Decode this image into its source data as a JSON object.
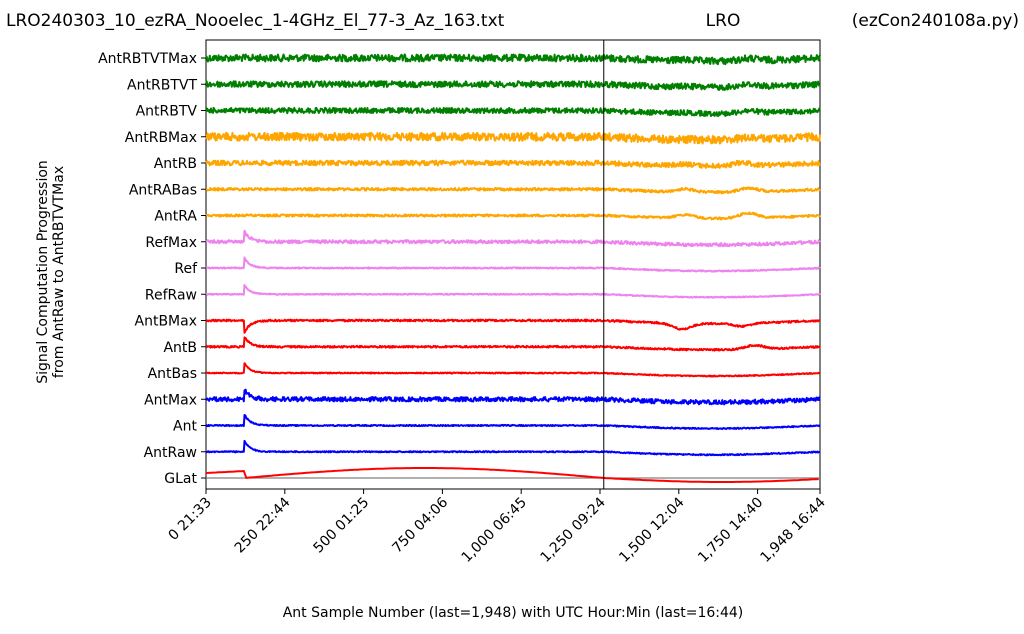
{
  "chart_data": {
    "type": "line",
    "title_left": "LRO240303_10_ezRA_Nooelec_1-4GHz_El_77-3_Az_163.txt",
    "title_center": "LRO",
    "title_right": "(ezCon240108a.py)",
    "ylabel_line1": "Signal Computation Progression",
    "ylabel_line2": "from AntRaw to AntRBTVTMax",
    "xlabel": "Ant Sample Number (last=1,948) with UTC Hour:Min (last=16:44)",
    "xlim": [
      0,
      1948
    ],
    "x_ticks": [
      {
        "value": 0,
        "label": "0  21:33"
      },
      {
        "value": 250,
        "label": "250  22:44"
      },
      {
        "value": 500,
        "label": "500  01:25"
      },
      {
        "value": 750,
        "label": "750  04:06"
      },
      {
        "value": 1000,
        "label": "1,000  06:45"
      },
      {
        "value": 1250,
        "label": "1,250  09:24"
      },
      {
        "value": 1500,
        "label": "1,500  12:04"
      },
      {
        "value": 1750,
        "label": "1,750  14:40"
      },
      {
        "value": 1948,
        "label": "1,948  16:44"
      }
    ],
    "vertical_marker_x": 1262,
    "grid": false,
    "colors": {
      "green": "#008000",
      "orange": "#ffa500",
      "violet": "#ee82ee",
      "red": "#ff0000",
      "blue": "#0000ff",
      "gray": "#808080"
    },
    "series": [
      {
        "name": "AntRBTVTMax",
        "color": "green",
        "noise": 3.5,
        "spike_x": 260,
        "spike_h": 0,
        "bumps": [
          [
            1520,
            0.8
          ],
          [
            1720,
            2.0
          ]
        ]
      },
      {
        "name": "AntRBTVT",
        "color": "green",
        "noise": 3.0,
        "spike_x": 260,
        "spike_h": 0,
        "bumps": [
          [
            1520,
            0.8
          ],
          [
            1720,
            2.5
          ]
        ]
      },
      {
        "name": "AntRBTV",
        "color": "green",
        "noise": 2.6,
        "spike_x": 260,
        "spike_h": 0,
        "bumps": [
          [
            1520,
            0.6
          ],
          [
            1720,
            2.5
          ]
        ]
      },
      {
        "name": "AntRBMax",
        "color": "orange",
        "noise": 4.0,
        "spike_x": 260,
        "spike_h": 0,
        "bumps": [
          [
            1720,
            1.5
          ]
        ]
      },
      {
        "name": "AntRB",
        "color": "orange",
        "noise": 2.4,
        "spike_x": 260,
        "spike_h": 0,
        "bumps": [
          [
            1520,
            1.5
          ],
          [
            1700,
            3.0
          ]
        ]
      },
      {
        "name": "AntRABas",
        "color": "orange",
        "noise": 1.3,
        "spike_x": 260,
        "spike_h": 0,
        "bumps": [
          [
            1520,
            3.0
          ],
          [
            1720,
            4.0
          ]
        ]
      },
      {
        "name": "AntRA",
        "color": "orange",
        "noise": 1.1,
        "spike_x": 260,
        "spike_h": 0,
        "bumps": [
          [
            1520,
            3.5
          ],
          [
            1720,
            5.0
          ]
        ]
      },
      {
        "name": "RefMax",
        "color": "violet",
        "noise": 1.6,
        "spike_x": 122,
        "spike_h": 10,
        "bumps": []
      },
      {
        "name": "Ref",
        "color": "violet",
        "noise": 0.6,
        "spike_x": 122,
        "spike_h": 10,
        "bumps": []
      },
      {
        "name": "RefRaw",
        "color": "violet",
        "noise": 0.5,
        "spike_x": 122,
        "spike_h": 9,
        "bumps": []
      },
      {
        "name": "AntBMax",
        "color": "red",
        "noise": 0.9,
        "spike_x": 122,
        "spike_h": -12,
        "bumps": [
          [
            1510,
            -6.0
          ],
          [
            1700,
            -3.0
          ]
        ]
      },
      {
        "name": "AntB",
        "color": "red",
        "noise": 0.9,
        "spike_x": 122,
        "spike_h": 10,
        "bumps": [
          [
            1740,
            4.0
          ]
        ]
      },
      {
        "name": "AntBas",
        "color": "red",
        "noise": 0.5,
        "spike_x": 122,
        "spike_h": 10,
        "bumps": []
      },
      {
        "name": "AntMax",
        "color": "blue",
        "noise": 2.2,
        "spike_x": 122,
        "spike_h": 10,
        "bumps": []
      },
      {
        "name": "Ant",
        "color": "blue",
        "noise": 0.6,
        "spike_x": 122,
        "spike_h": 11,
        "bumps": []
      },
      {
        "name": "AntRaw",
        "color": "blue",
        "noise": 0.6,
        "spike_x": 122,
        "spike_h": 11,
        "bumps": []
      },
      {
        "name": "GLat",
        "color": "red",
        "noise": 0.0,
        "spike_x": 122,
        "spike_h": 0,
        "bumps": []
      }
    ]
  }
}
